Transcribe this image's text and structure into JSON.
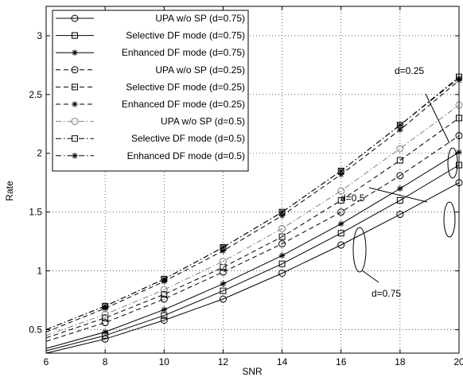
{
  "chart_data": {
    "type": "line",
    "title": "",
    "xlabel": "SNR",
    "ylabel": "Rate",
    "xlim": [
      6,
      20
    ],
    "ylim": [
      0.3,
      3.25
    ],
    "xticks": [
      6,
      8,
      10,
      12,
      14,
      16,
      18,
      20
    ],
    "yticks": [
      0.5,
      1,
      1.5,
      2,
      2.5,
      3
    ],
    "xtick_labels": [
      "6",
      "8",
      "10",
      "12",
      "14",
      "16",
      "18",
      "20"
    ],
    "ytick_labels": [
      "0.5",
      "1",
      "1.5",
      "2",
      "2.5",
      "3"
    ],
    "grid": true,
    "legend_position": "top-left",
    "x": [
      6,
      8,
      10,
      12,
      14,
      16,
      18,
      20
    ],
    "marker_x": [
      8,
      10,
      12,
      14,
      16,
      18,
      20
    ],
    "series": [
      {
        "name": "UPA w/o SP (d=0.75)",
        "style": "solid",
        "marker": "circle",
        "color": "#000000",
        "values": [
          0.3,
          0.42,
          0.58,
          0.76,
          0.98,
          1.22,
          1.48,
          1.75
        ]
      },
      {
        "name": "Selective DF mode (d=0.75)",
        "style": "solid",
        "marker": "square",
        "color": "#000000",
        "values": [
          0.32,
          0.45,
          0.62,
          0.83,
          1.06,
          1.32,
          1.6,
          1.9
        ]
      },
      {
        "name": "Enhanced DF mode (d=0.75)",
        "style": "solid",
        "marker": "star",
        "color": "#000000",
        "values": [
          0.34,
          0.48,
          0.67,
          0.89,
          1.13,
          1.4,
          1.7,
          2.01
        ]
      },
      {
        "name": "UPA w/o SP (d=0.25)",
        "style": "dash",
        "marker": "circle",
        "color": "#000000",
        "values": [
          0.4,
          0.56,
          0.76,
          0.99,
          1.23,
          1.5,
          1.81,
          2.15
        ]
      },
      {
        "name": "Selective DF mode (d=0.25)",
        "style": "dash",
        "marker": "square",
        "color": "#000000",
        "values": [
          0.43,
          0.6,
          0.8,
          1.03,
          1.29,
          1.6,
          1.94,
          2.3
        ]
      },
      {
        "name": "Enhanced DF mode (d=0.25)",
        "style": "dash",
        "marker": "star",
        "color": "#000000",
        "values": [
          0.48,
          0.68,
          0.91,
          1.17,
          1.47,
          1.82,
          2.2,
          2.62
        ]
      },
      {
        "name": "UPA w/o SP (d=0.5)",
        "style": "dashdot",
        "marker": "circle",
        "color": "#808080",
        "values": [
          0.45,
          0.63,
          0.84,
          1.08,
          1.36,
          1.68,
          2.04,
          2.41
        ]
      },
      {
        "name": "Selective DF mode (d=0.5)",
        "style": "dashdot",
        "marker": "square",
        "color": "#000000",
        "values": [
          0.5,
          0.7,
          0.93,
          1.2,
          1.5,
          1.85,
          2.24,
          2.65
        ]
      },
      {
        "name": "Enhanced DF mode (d=0.5)",
        "style": "dashdot",
        "marker": "star",
        "color": "#000000",
        "values": [
          0.5,
          0.7,
          0.93,
          1.2,
          1.5,
          1.85,
          2.24,
          2.64
        ]
      }
    ],
    "annotations": [
      {
        "text": "d=0.25",
        "target": "d=0.25 curves near SNR 19"
      },
      {
        "text": "d=0.5",
        "target": "d=0.5 curves near SNR 17.5"
      },
      {
        "text": "d=0.75",
        "target": "d=0.75 curves near SNR 16.7"
      }
    ]
  }
}
